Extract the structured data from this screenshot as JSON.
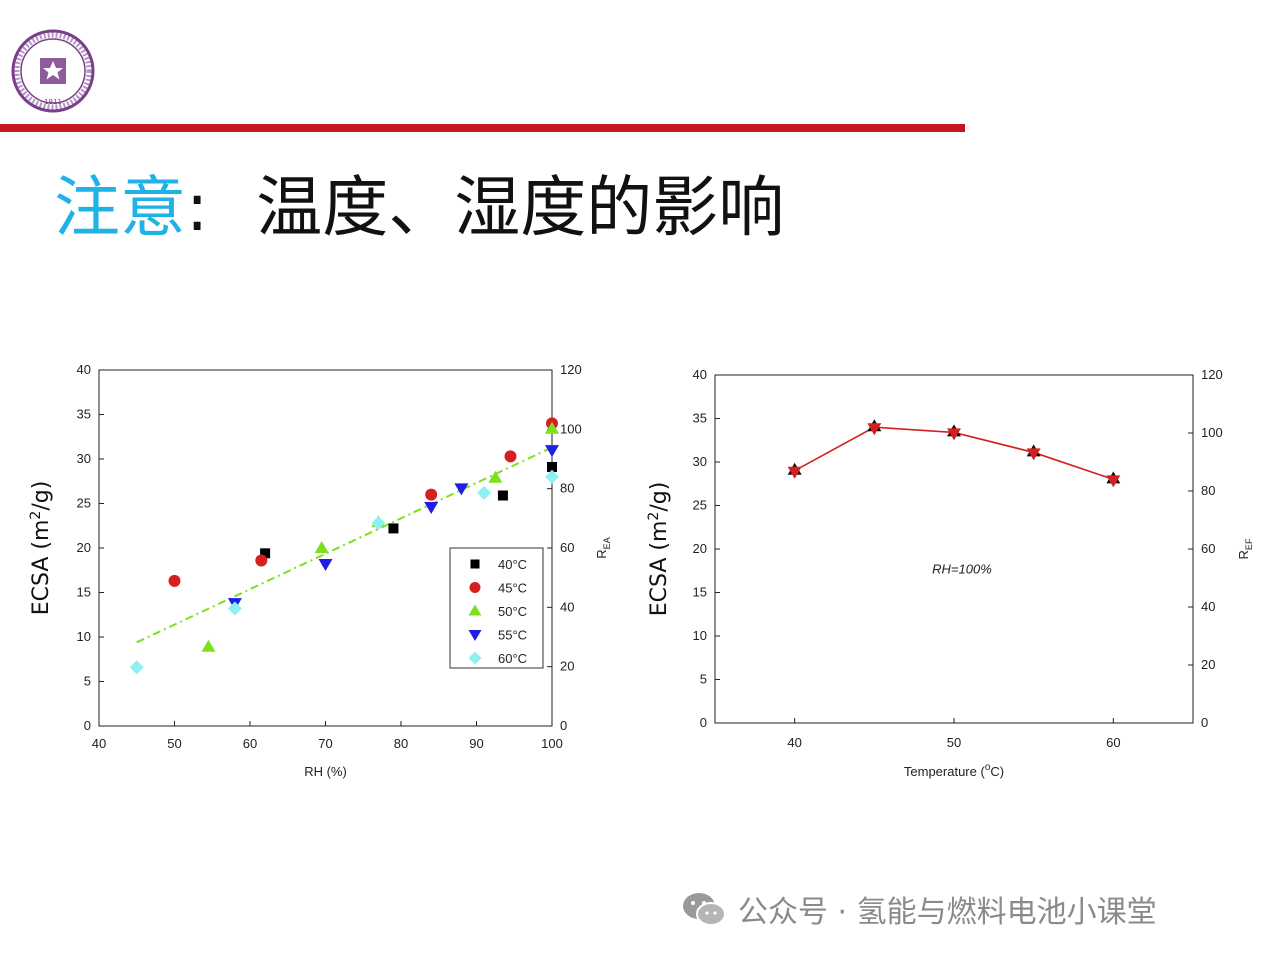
{
  "title": {
    "highlight": "注意",
    "colon": ":",
    "rest": "温度、湿度的影响"
  },
  "colors": {
    "accent_red": "#c5161d",
    "title_blue": "#1fb2e6",
    "logo_purple": "#7a3e8c"
  },
  "logo": {
    "icon": "university-seal-icon",
    "text": "1911"
  },
  "watermark": {
    "icon": "wechat-icon",
    "text": "公众号 · 氢能与燃料电池小课堂"
  },
  "chart_data": [
    {
      "type": "scatter",
      "xlabel": "RH (%)",
      "ylabel_prefix": "ECSA (m",
      "ylabel_sup": "2",
      "ylabel_suffix": "/g)",
      "y2label_main": "R",
      "y2label_sub": "EA",
      "xlim": [
        40,
        100
      ],
      "ylim": [
        0,
        40
      ],
      "y2lim": [
        0,
        120
      ],
      "xticks": [
        "40",
        "50",
        "60",
        "70",
        "80",
        "90",
        "100"
      ],
      "yticks": [
        "0",
        "5",
        "10",
        "15",
        "20",
        "25",
        "30",
        "35",
        "40"
      ],
      "y2ticks": [
        "0",
        "20",
        "40",
        "60",
        "80",
        "100",
        "120"
      ],
      "legend_placement": "lower-right",
      "series": [
        {
          "name": "40°C",
          "marker": "square",
          "color": "#000000",
          "points": [
            [
              62,
              19.4
            ],
            [
              79,
              22.2
            ],
            [
              93.5,
              25.9
            ],
            [
              100,
              29.1
            ]
          ]
        },
        {
          "name": "45°C",
          "marker": "circle",
          "color": "#d42020",
          "points": [
            [
              50,
              16.3
            ],
            [
              61.5,
              18.6
            ],
            [
              84,
              26.0
            ],
            [
              94.5,
              30.3
            ],
            [
              100,
              34.0
            ]
          ]
        },
        {
          "name": "50°C",
          "marker": "triangle-up",
          "color": "#7be01e",
          "points": [
            [
              54.5,
              8.9
            ],
            [
              69.5,
              20.0
            ],
            [
              77,
              22.9
            ],
            [
              92.5,
              27.9
            ],
            [
              100,
              33.4
            ]
          ]
        },
        {
          "name": "55°C",
          "marker": "triangle-down",
          "color": "#1e1ee6",
          "points": [
            [
              58,
              13.8
            ],
            [
              70,
              18.2
            ],
            [
              84,
              24.6
            ],
            [
              88,
              26.7
            ],
            [
              100,
              31.0
            ]
          ]
        },
        {
          "name": "60°C",
          "marker": "diamond",
          "color": "#8ef0f0",
          "points": [
            [
              45,
              6.6
            ],
            [
              58,
              13.2
            ],
            [
              77,
              22.8
            ],
            [
              91,
              26.2
            ],
            [
              100,
              28.0
            ]
          ]
        }
      ],
      "fit_line": {
        "from": [
          45,
          9.4
        ],
        "to": [
          100,
          31.3
        ],
        "color": "#7be01e"
      }
    },
    {
      "type": "line",
      "xlabel_prefix": "Temperature (",
      "xlabel_sup": "o",
      "xlabel_suffix": "C)",
      "ylabel_prefix": "ECSA (m",
      "ylabel_sup": "2",
      "ylabel_suffix": "/g)",
      "y2label_main": "R",
      "y2label_sub": "EF",
      "annotation": "RH=100%",
      "xlim": [
        35,
        65
      ],
      "ylim": [
        0,
        40
      ],
      "y2lim": [
        0,
        120
      ],
      "xticks": [
        "40",
        "50",
        "60"
      ],
      "yticks": [
        "0",
        "5",
        "10",
        "15",
        "20",
        "25",
        "30",
        "35",
        "40"
      ],
      "y2ticks": [
        "0",
        "20",
        "40",
        "60",
        "80",
        "100",
        "120"
      ],
      "series": [
        {
          "x": [
            40,
            45,
            50,
            55,
            60
          ],
          "y": [
            29.0,
            34.0,
            33.4,
            31.1,
            28.0
          ],
          "color": "#d42020"
        }
      ]
    }
  ]
}
